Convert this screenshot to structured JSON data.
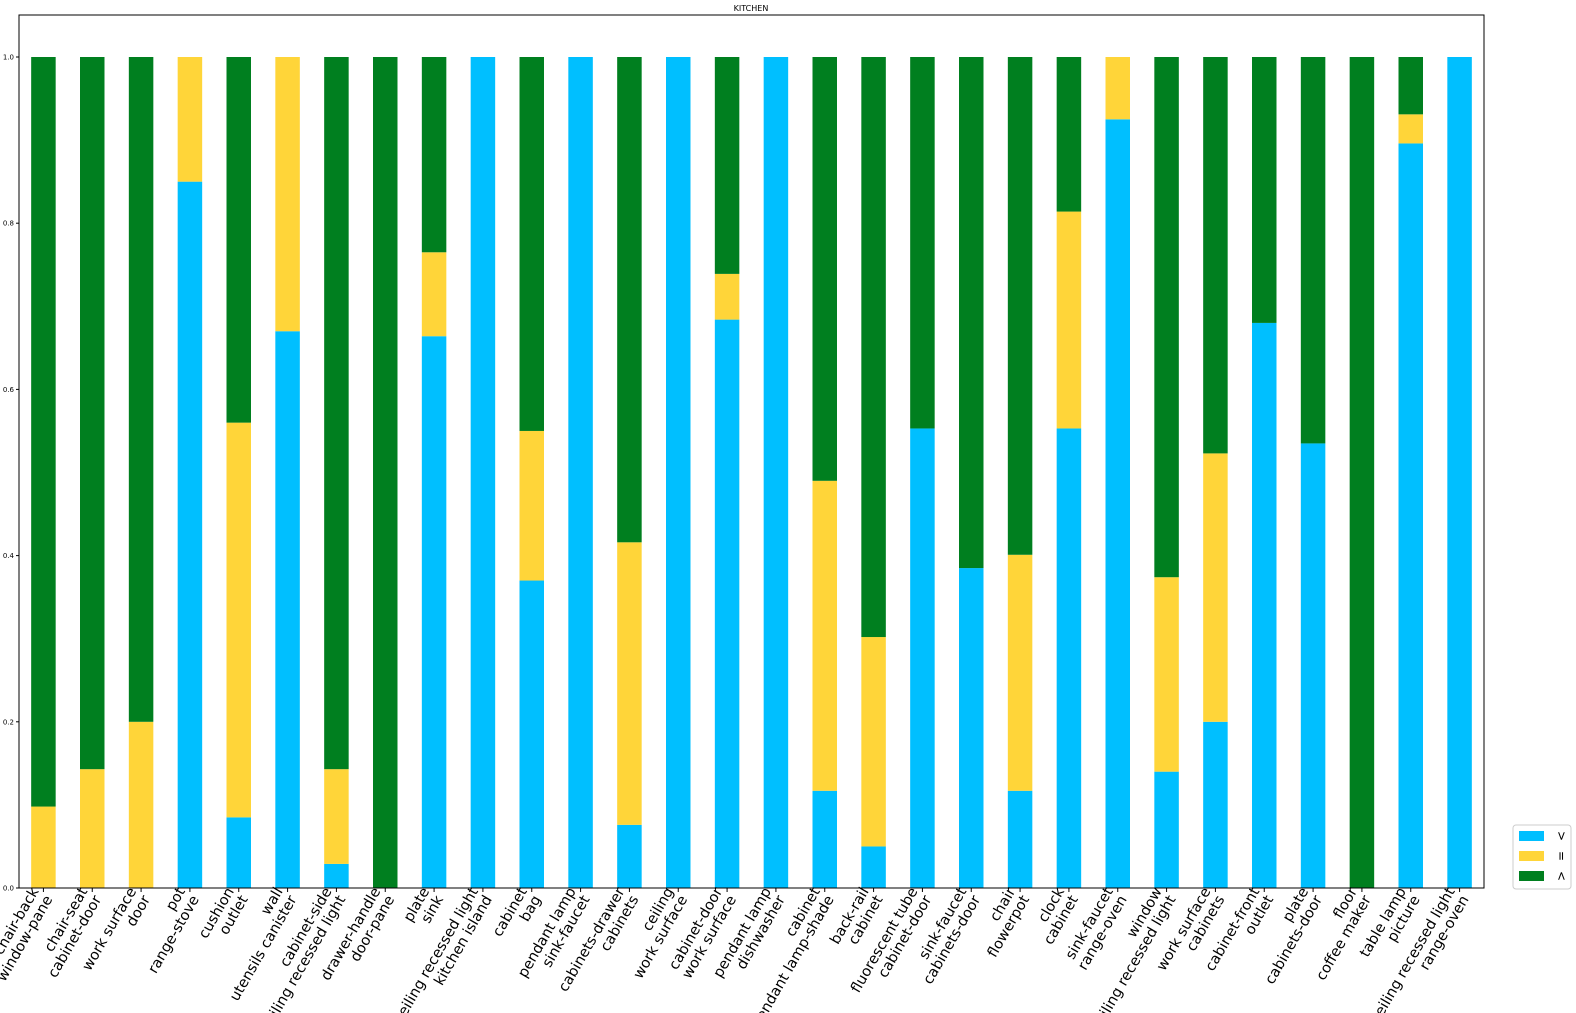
{
  "chart_data": {
    "type": "bar",
    "stacked": true,
    "title": "KITCHEN",
    "xlabel": "",
    "ylabel": "",
    "ylim": [
      0,
      1.05
    ],
    "yticks": [
      "0.0",
      "0.2",
      "0.4",
      "0.6",
      "0.8",
      "1.0"
    ],
    "categories": [
      [
        "chair-back",
        "window-pane"
      ],
      [
        "chair-seat",
        "cabinet-door"
      ],
      [
        "work surface",
        "door"
      ],
      [
        "pot",
        "range-stove"
      ],
      [
        "cushion",
        "outlet"
      ],
      [
        "wall",
        "utensils canister"
      ],
      [
        "cabinet-side",
        "ceiling recessed light"
      ],
      [
        "drawer-handle",
        "door-pane"
      ],
      [
        "plate",
        "sink"
      ],
      [
        "ceiling recessed light",
        "kitchen island"
      ],
      [
        "cabinet",
        "bag"
      ],
      [
        "pendant lamp",
        "sink-faucet"
      ],
      [
        "cabinets-drawer",
        "cabinets"
      ],
      [
        "ceiling",
        "work surface"
      ],
      [
        "cabinet-door",
        "work surface"
      ],
      [
        "pendant lamp",
        "dishwasher"
      ],
      [
        "cabinet",
        "pendant lamp-shade"
      ],
      [
        "back-rail",
        "cabinet"
      ],
      [
        "fluorescent tube",
        "cabinet-door"
      ],
      [
        "sink-faucet",
        "cabinets-door"
      ],
      [
        "chair",
        "flowerpot"
      ],
      [
        "clock",
        "cabinet"
      ],
      [
        "sink-faucet",
        "range-oven"
      ],
      [
        "window",
        "ceiling recessed light"
      ],
      [
        "work surface",
        "cabinets"
      ],
      [
        "cabinet-front",
        "outlet"
      ],
      [
        "plate",
        "cabinets-door"
      ],
      [
        "floor",
        "coffee maker"
      ],
      [
        "table lamp",
        "picture"
      ],
      [
        "ceiling recessed light",
        "range-oven"
      ]
    ],
    "series": [
      {
        "name": ">",
        "color": "#00BFFF",
        "values": [
          0,
          0,
          0,
          0.85,
          0.085,
          0.67,
          0.029,
          0,
          0.664,
          1.0,
          0.37,
          1.0,
          0.076,
          1.0,
          0.684,
          1.0,
          0.117,
          0.05,
          0.553,
          0.385,
          0.117,
          0.553,
          0.925,
          0.14,
          0.2,
          0.68,
          0.535,
          0,
          0.896,
          1.0
        ]
      },
      {
        "name": "=",
        "color": "#FFD539",
        "values": [
          0.098,
          0.143,
          0.2,
          0.15,
          0.475,
          0.33,
          0.114,
          0,
          0.101,
          0,
          0.18,
          0,
          0.34,
          0,
          0.055,
          0,
          0.373,
          0.252,
          0,
          0,
          0.284,
          0.261,
          0.075,
          0.234,
          0.323,
          0,
          0,
          0,
          0.035,
          0
        ]
      },
      {
        "name": "<",
        "color": "#007F1F",
        "values": [
          0.902,
          0.857,
          0.8,
          0,
          0.44,
          0,
          0.857,
          1.0,
          0.235,
          0,
          0.45,
          0,
          0.584,
          0,
          0.261,
          0,
          0.51,
          0.698,
          0.447,
          0.615,
          0.599,
          0.186,
          0,
          0.626,
          0.477,
          0.32,
          0.465,
          1.0,
          0.069,
          0
        ]
      }
    ],
    "legend": [
      "<",
      "=",
      ">"
    ],
    "legend_position": "right",
    "grid": false
  }
}
